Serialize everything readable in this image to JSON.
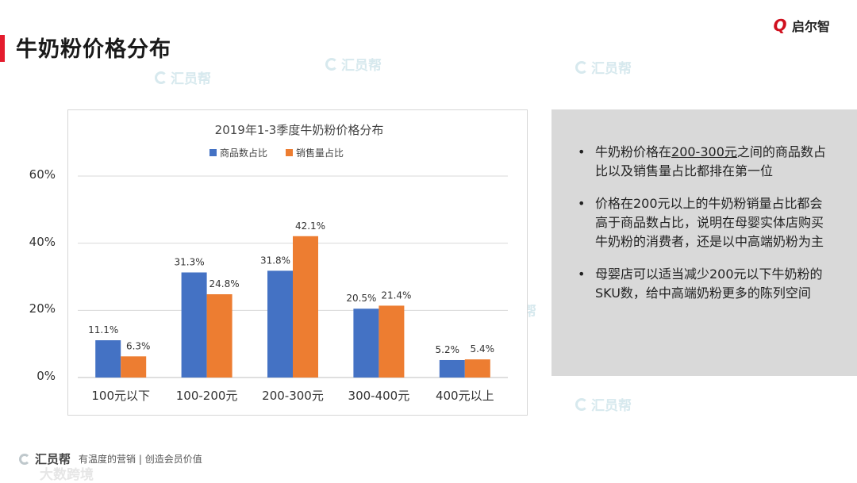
{
  "page": {
    "title": "牛奶粉价格分布",
    "logo_text": "启尔智",
    "logo_mark": "Q"
  },
  "watermark_text": "汇员帮",
  "chart_data": {
    "type": "bar",
    "title": "2019年1-3季度牛奶粉价格分布",
    "categories": [
      "100元以下",
      "100-200元",
      "200-300元",
      "300-400元",
      "400元以上"
    ],
    "series": [
      {
        "name": "商品数占比",
        "color": "#4472c4",
        "values": [
          11.1,
          31.3,
          31.8,
          20.5,
          5.2
        ],
        "labels": [
          "11.1%",
          "31.3%",
          "31.8%",
          "20.5%",
          "5.2%"
        ]
      },
      {
        "name": "销售量占比",
        "color": "#ed7d31",
        "values": [
          6.3,
          24.8,
          42.1,
          21.4,
          5.4
        ],
        "labels": [
          "6.3%",
          "24.8%",
          "42.1%",
          "21.4%",
          "5.4%"
        ]
      }
    ],
    "ylim": [
      0,
      60
    ],
    "yticks": [
      0,
      20,
      40,
      60
    ],
    "ytick_labels": [
      "0%",
      "20%",
      "40%",
      "60%"
    ],
    "legend_position": "top-center",
    "grid": true,
    "gridline_color": "#d9d9d9"
  },
  "panel": {
    "bullet": "•",
    "items": [
      {
        "pre": "牛奶粉价格在",
        "highlight": "200-300元",
        "post": "之间的商品数占比以及销售量占比都排在第一位"
      },
      {
        "pre": "价格在200元以上的牛奶粉销量占比都会高于商品数占比，说明在母婴实体店购买牛奶粉的消费者，还是以中高端奶粉为主",
        "highlight": "",
        "post": ""
      },
      {
        "pre": "母婴店可以适当减少200元以下牛奶粉的SKU数，给中高端奶粉更多的陈列空间",
        "highlight": "",
        "post": ""
      }
    ]
  },
  "footer": {
    "brand": "汇员帮",
    "slogan": "有温度的营销 | 创造会员价值",
    "sub": "大数跨境"
  }
}
